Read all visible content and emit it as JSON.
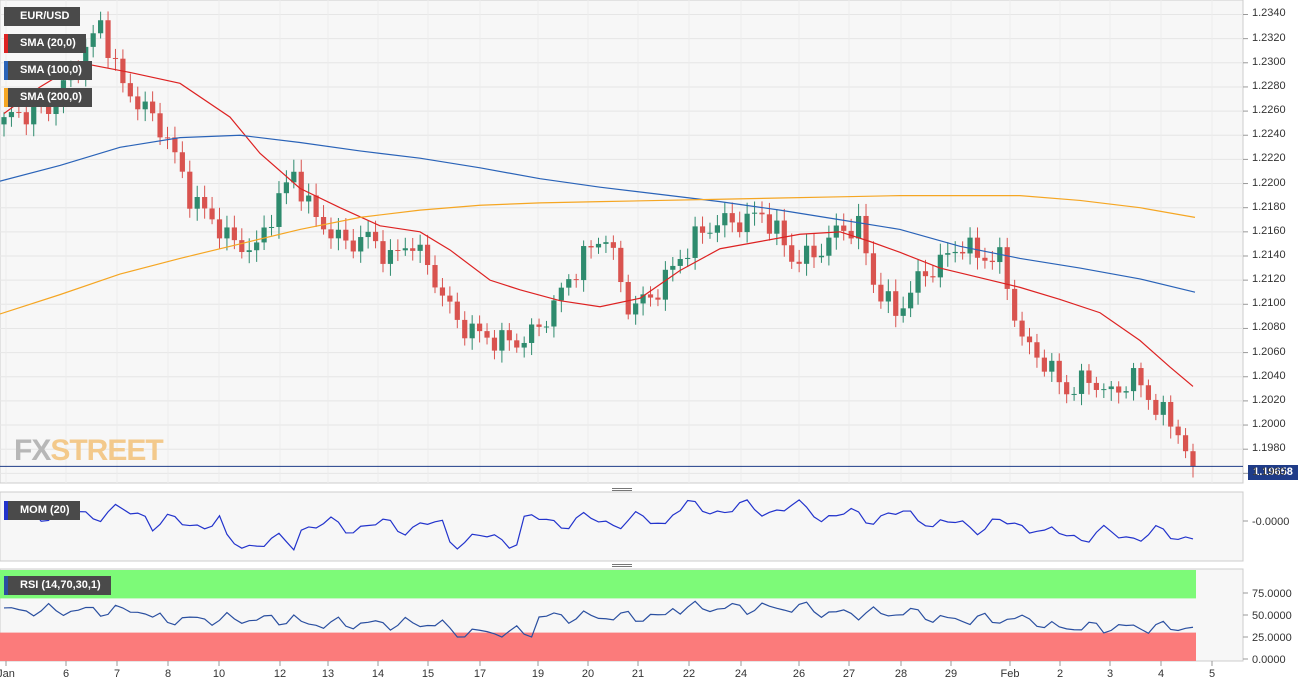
{
  "chart_data": {
    "type": "candlestick",
    "symbol": "EUR/USD",
    "last_price": "1.19658",
    "y_ticks": [
      "1.2340",
      "1.2320",
      "1.2300",
      "1.2280",
      "1.2260",
      "1.2240",
      "1.2220",
      "1.2200",
      "1.2180",
      "1.2160",
      "1.2140",
      "1.2120",
      "1.2100",
      "1.2080",
      "1.2060",
      "1.2040",
      "1.2020",
      "1.2000",
      "1.1980",
      "1.1960"
    ],
    "ylim": [
      1.196,
      1.235
    ],
    "x_ticks": [
      "Jan",
      "6",
      "7",
      "8",
      "10",
      "12",
      "13",
      "14",
      "15",
      "17",
      "19",
      "20",
      "21",
      "22",
      "24",
      "26",
      "27",
      "28",
      "29",
      "Feb",
      "2",
      "3",
      "4",
      "5"
    ],
    "indicators": {
      "sma20": {
        "label": "SMA (20,0)",
        "color": "#dd2222"
      },
      "sma100": {
        "label": "SMA (100,0)",
        "color": "#2a63b8"
      },
      "sma200": {
        "label": "SMA (200,0)",
        "color": "#f5a623"
      }
    },
    "mom": {
      "label": "MOM (20)",
      "ticks": [
        "-0.0000"
      ]
    },
    "rsi": {
      "label": "RSI (14,70,30,1)",
      "ticks": [
        "75.0000",
        "50.0000",
        "25.0000",
        "0.0000"
      ],
      "overbought": 70,
      "oversold": 30
    },
    "colors": {
      "up": "#2e8b6e",
      "down": "#d9534f",
      "mom": "#2233cc",
      "rsi": "#2a4fa0"
    },
    "logo": {
      "part1": "FX",
      "part2": "STREET"
    }
  }
}
